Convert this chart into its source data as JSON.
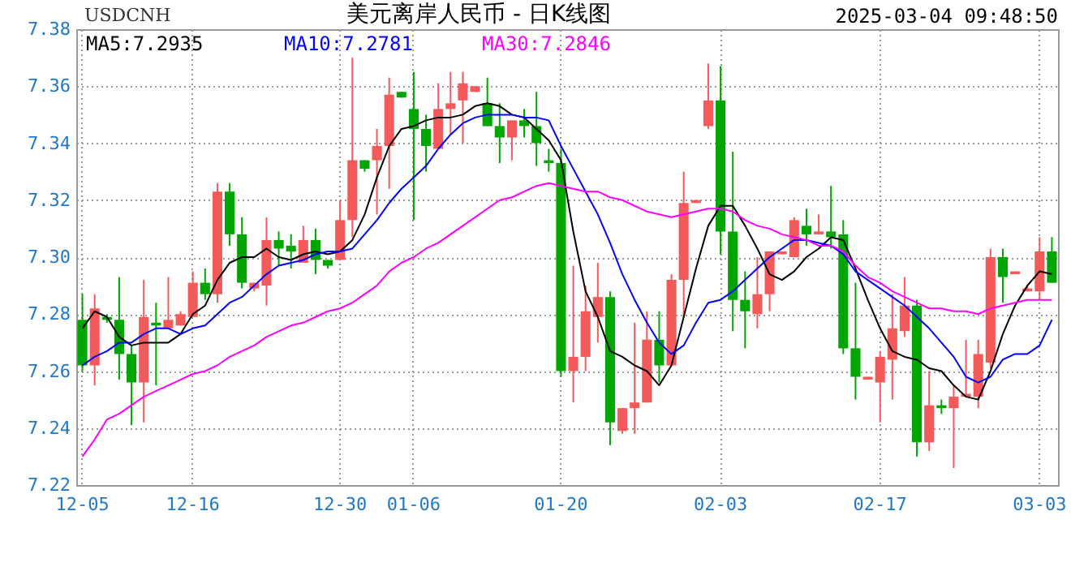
{
  "chart_data": {
    "type": "candlestick",
    "title": "美元离岸人民币 - 日K线图",
    "annotations": [
      "USDCNH",
      "2025-03-04 09:48:50"
    ],
    "categories": [
      "12-05",
      null,
      null,
      null,
      null,
      null,
      null,
      null,
      null,
      "12-16",
      null,
      null,
      null,
      null,
      null,
      null,
      null,
      null,
      null,
      null,
      null,
      "12-30",
      null,
      null,
      null,
      null,
      null,
      "01-06",
      null,
      null,
      null,
      null,
      null,
      null,
      null,
      null,
      null,
      null,
      null,
      "01-20",
      null,
      null,
      null,
      null,
      null,
      null,
      null,
      null,
      null,
      null,
      null,
      null,
      "02-03",
      null,
      null,
      null,
      null,
      null,
      null,
      null,
      null,
      null,
      null,
      null,
      null,
      "02-17",
      null,
      null,
      null,
      null,
      null,
      null,
      null,
      null,
      null,
      null,
      null,
      null,
      "03-03",
      null
    ],
    "ohlc": [
      [
        7.278,
        7.287,
        7.26,
        7.262
      ],
      [
        7.262,
        7.287,
        7.255,
        7.282
      ],
      [
        7.279,
        7.28,
        7.277,
        7.278
      ],
      [
        7.278,
        7.293,
        7.257,
        7.266
      ],
      [
        7.266,
        7.269,
        7.241,
        7.256
      ],
      [
        7.256,
        7.292,
        7.242,
        7.279
      ],
      [
        7.277,
        7.284,
        7.255,
        7.276
      ],
      [
        7.275,
        7.293,
        7.275,
        7.278
      ],
      [
        7.276,
        7.281,
        7.276,
        7.28
      ],
      [
        7.279,
        7.295,
        7.279,
        7.291
      ],
      [
        7.291,
        7.296,
        7.285,
        7.287
      ],
      [
        7.287,
        7.326,
        7.284,
        7.323
      ],
      [
        7.323,
        7.326,
        7.304,
        7.308
      ],
      [
        7.308,
        7.314,
        7.289,
        7.291
      ],
      [
        7.289,
        7.291,
        7.288,
        7.291
      ],
      [
        7.29,
        7.314,
        7.283,
        7.306
      ],
      [
        7.306,
        7.309,
        7.297,
        7.303
      ],
      [
        7.304,
        7.308,
        7.296,
        7.302
      ],
      [
        7.298,
        7.311,
        7.298,
        7.306
      ],
      [
        7.306,
        7.31,
        7.294,
        7.299
      ],
      [
        7.299,
        7.299,
        7.296,
        7.297
      ],
      [
        7.299,
        7.32,
        7.299,
        7.313
      ],
      [
        7.313,
        7.37,
        7.307,
        7.334
      ],
      [
        7.334,
        7.334,
        7.33,
        7.331
      ],
      [
        7.334,
        7.345,
        7.315,
        7.339
      ],
      [
        7.339,
        7.363,
        7.324,
        7.357
      ],
      [
        7.358,
        7.358,
        7.356,
        7.356
      ],
      [
        7.352,
        7.365,
        7.313,
        7.345
      ],
      [
        7.345,
        7.35,
        7.33,
        7.339
      ],
      [
        7.338,
        7.361,
        7.338,
        7.352
      ],
      [
        7.352,
        7.365,
        7.343,
        7.354
      ],
      [
        7.355,
        7.365,
        7.34,
        7.361
      ],
      [
        7.358,
        7.36,
        7.358,
        7.36
      ],
      [
        7.354,
        7.363,
        7.346,
        7.346
      ],
      [
        7.346,
        7.354,
        7.333,
        7.342
      ],
      [
        7.342,
        7.348,
        7.334,
        7.348
      ],
      [
        7.348,
        7.352,
        7.342,
        7.346
      ],
      [
        7.346,
        7.358,
        7.332,
        7.34
      ],
      [
        7.334,
        7.338,
        7.33,
        7.333
      ],
      [
        7.333,
        7.338,
        7.258,
        7.26
      ],
      [
        7.26,
        7.297,
        7.249,
        7.265
      ],
      [
        7.265,
        7.29,
        7.26,
        7.281
      ],
      [
        7.279,
        7.298,
        7.27,
        7.286
      ],
      [
        7.286,
        7.288,
        7.234,
        7.242
      ],
      [
        7.239,
        7.247,
        7.238,
        7.247
      ],
      [
        7.247,
        7.277,
        7.238,
        7.249
      ],
      [
        7.249,
        7.281,
        7.249,
        7.271
      ],
      [
        7.271,
        7.281,
        7.256,
        7.262
      ],
      [
        7.262,
        7.294,
        7.262,
        7.292
      ],
      [
        7.292,
        7.33,
        7.279,
        7.319
      ],
      [
        7.319,
        7.32,
        7.319,
        7.32
      ],
      [
        7.346,
        7.368,
        7.345,
        7.355
      ],
      [
        7.355,
        7.367,
        7.301,
        7.309
      ],
      [
        7.309,
        7.337,
        7.274,
        7.285
      ],
      [
        7.285,
        7.295,
        7.268,
        7.281
      ],
      [
        7.28,
        7.3,
        7.275,
        7.287
      ],
      [
        7.287,
        7.302,
        7.281,
        7.302
      ],
      [
        7.301,
        7.302,
        7.301,
        7.302
      ],
      [
        7.3,
        7.314,
        7.3,
        7.313
      ],
      [
        7.311,
        7.317,
        7.304,
        7.308
      ],
      [
        7.308,
        7.315,
        7.308,
        7.309
      ],
      [
        7.309,
        7.325,
        7.303,
        7.307
      ],
      [
        7.308,
        7.313,
        7.266,
        7.268
      ],
      [
        7.268,
        7.291,
        7.25,
        7.258
      ],
      [
        7.257,
        7.258,
        7.257,
        7.258
      ],
      [
        7.256,
        7.267,
        7.242,
        7.265
      ],
      [
        7.264,
        7.287,
        7.25,
        7.275
      ],
      [
        7.274,
        7.293,
        7.272,
        7.283
      ],
      [
        7.283,
        7.285,
        7.23,
        7.235
      ],
      [
        7.235,
        7.26,
        7.232,
        7.248
      ],
      [
        7.248,
        7.25,
        7.245,
        7.247
      ],
      [
        7.247,
        7.255,
        7.226,
        7.251
      ],
      [
        7.251,
        7.271,
        7.251,
        7.252
      ],
      [
        7.251,
        7.271,
        7.247,
        7.266
      ],
      [
        7.263,
        7.303,
        7.261,
        7.3
      ],
      [
        7.3,
        7.303,
        7.284,
        7.293
      ],
      [
        7.294,
        7.295,
        7.294,
        7.295
      ],
      [
        7.288,
        7.29,
        7.288,
        7.289
      ],
      [
        7.288,
        7.307,
        7.285,
        7.302
      ],
      [
        7.302,
        7.307,
        7.291,
        7.291
      ]
    ],
    "colors": [
      "#00a600",
      "#f55a5a",
      "#00a600",
      "#00a600",
      "#00a600",
      "#f55a5a",
      "#00a600",
      "#f55a5a",
      "#f55a5a",
      "#f55a5a",
      "#00a600",
      "#f55a5a",
      "#00a600",
      "#00a600",
      "#f55a5a",
      "#f55a5a",
      "#00a600",
      "#00a600",
      "#f55a5a",
      "#00a600",
      "#00a600",
      "#f55a5a",
      "#f55a5a",
      "#00a600",
      "#f55a5a",
      "#f55a5a",
      "#00a600",
      "#00a600",
      "#00a600",
      "#f55a5a",
      "#f55a5a",
      "#f55a5a",
      "#f55a5a",
      "#00a600",
      "#00a600",
      "#f55a5a",
      "#00a600",
      "#00a600",
      "#00a600",
      "#00a600",
      "#f55a5a",
      "#f55a5a",
      "#f55a5a",
      "#00a600",
      "#f55a5a",
      "#f55a5a",
      "#f55a5a",
      "#00a600",
      "#f55a5a",
      "#f55a5a",
      "#f55a5a",
      "#f55a5a",
      "#00a600",
      "#00a600",
      "#00a600",
      "#f55a5a",
      "#f55a5a",
      "#f55a5a",
      "#f55a5a",
      "#00a600",
      "#f55a5a",
      "#00a600",
      "#00a600",
      "#00a600",
      "#f55a5a",
      "#f55a5a",
      "#f55a5a",
      "#f55a5a",
      "#00a600",
      "#f55a5a",
      "#00a600",
      "#f55a5a",
      "#f55a5a",
      "#f55a5a",
      "#f55a5a",
      "#00a600",
      "#f55a5a",
      "#f55a5a",
      "#f55a5a",
      "#00a600"
    ],
    "series": [
      {
        "type": "line",
        "name": "MA5:7.2935",
        "color": "#000000",
        "values": [
          7.275,
          7.281,
          7.279,
          7.272,
          7.269,
          7.27,
          7.27,
          7.27,
          7.273,
          7.28,
          7.283,
          7.292,
          7.298,
          7.3,
          7.3,
          7.303,
          7.3,
          7.299,
          7.301,
          7.302,
          7.301,
          7.302,
          7.306,
          7.315,
          7.328,
          7.339,
          7.345,
          7.346,
          7.348,
          7.349,
          7.349,
          7.35,
          7.353,
          7.354,
          7.353,
          7.35,
          7.349,
          7.345,
          7.341,
          7.334,
          7.309,
          7.288,
          7.279,
          7.267,
          7.265,
          7.262,
          7.26,
          7.255,
          7.262,
          7.279,
          7.296,
          7.311,
          7.318,
          7.318,
          7.311,
          7.303,
          7.294,
          7.292,
          7.295,
          7.3,
          7.303,
          7.307,
          7.306,
          7.296,
          7.285,
          7.275,
          7.267,
          7.265,
          7.264,
          7.261,
          7.26,
          7.255,
          7.251,
          7.25,
          7.26,
          7.273,
          7.283,
          7.29,
          7.295,
          7.294
        ]
      },
      {
        "type": "line",
        "name": "MA10:7.2781",
        "color": "#0000ff",
        "values": [
          7.262,
          7.265,
          7.267,
          7.27,
          7.27,
          7.273,
          7.275,
          7.275,
          7.273,
          7.275,
          7.276,
          7.28,
          7.284,
          7.286,
          7.29,
          7.294,
          7.297,
          7.298,
          7.299,
          7.301,
          7.302,
          7.302,
          7.303,
          7.308,
          7.313,
          7.319,
          7.324,
          7.328,
          7.332,
          7.338,
          7.343,
          7.347,
          7.349,
          7.35,
          7.35,
          7.35,
          7.349,
          7.349,
          7.348,
          7.339,
          7.331,
          7.323,
          7.315,
          7.305,
          7.294,
          7.285,
          7.277,
          7.27,
          7.266,
          7.269,
          7.277,
          7.284,
          7.285,
          7.288,
          7.292,
          7.296,
          7.3,
          7.303,
          7.306,
          7.306,
          7.305,
          7.304,
          7.301,
          7.295,
          7.292,
          7.289,
          7.286,
          7.283,
          7.279,
          7.275,
          7.27,
          7.265,
          7.258,
          7.256,
          7.258,
          7.264,
          7.266,
          7.266,
          7.269,
          7.278
        ]
      },
      {
        "type": "line",
        "name": "MA30:7.2846",
        "color": "#ff00ff",
        "values": [
          7.23,
          7.236,
          7.243,
          7.245,
          7.248,
          7.251,
          7.253,
          7.255,
          7.257,
          7.259,
          7.26,
          7.262,
          7.265,
          7.267,
          7.269,
          7.272,
          7.274,
          7.276,
          7.277,
          7.279,
          7.281,
          7.282,
          7.284,
          7.287,
          7.29,
          7.295,
          7.298,
          7.3,
          7.303,
          7.305,
          7.308,
          7.311,
          7.314,
          7.317,
          7.32,
          7.321,
          7.323,
          7.325,
          7.326,
          7.325,
          7.324,
          7.323,
          7.323,
          7.321,
          7.32,
          7.318,
          7.316,
          7.315,
          7.314,
          7.315,
          7.316,
          7.317,
          7.317,
          7.316,
          7.313,
          7.311,
          7.31,
          7.308,
          7.307,
          7.306,
          7.304,
          7.304,
          7.302,
          7.297,
          7.293,
          7.291,
          7.288,
          7.286,
          7.284,
          7.282,
          7.282,
          7.281,
          7.281,
          7.28,
          7.282,
          7.283,
          7.284,
          7.285,
          7.285,
          7.285
        ]
      }
    ],
    "ylim": [
      7.22,
      7.38
    ],
    "yticks": [
      7.22,
      7.24,
      7.26,
      7.28,
      {
        "value": 7.3,
        "label": "7.30"
      },
      7.32,
      7.34,
      7.36,
      7.38
    ],
    "grid": true,
    "legend": "top left"
  }
}
